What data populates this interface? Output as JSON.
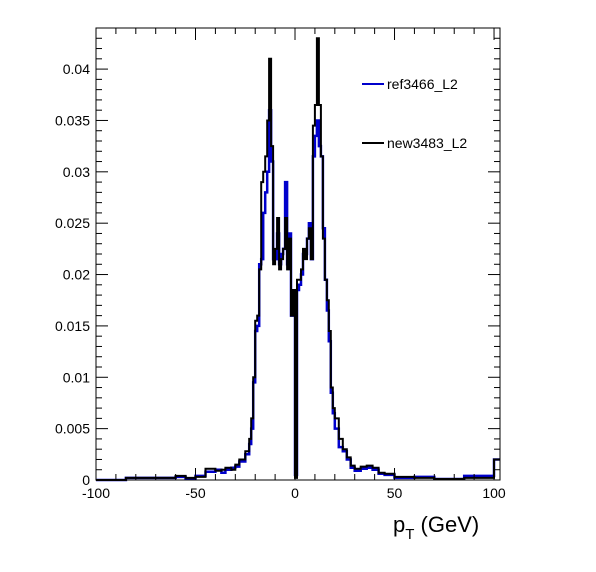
{
  "chart_data": {
    "type": "histogram-step",
    "title": "",
    "xlabel": "p",
    "xlabel_sub": "T",
    "xlabel_unit": " (GeV)",
    "xlim": [
      -100,
      103
    ],
    "ylim": [
      0,
      0.044
    ],
    "x_ticks": [
      -100,
      -50,
      0,
      50,
      100
    ],
    "x_tick_labels": [
      "-100",
      "-50",
      "0",
      "50",
      "100"
    ],
    "y_ticks": [
      0,
      0.005,
      0.01,
      0.015,
      0.02,
      0.025,
      0.03,
      0.035,
      0.04
    ],
    "y_tick_labels": [
      "0",
      "0.005",
      "0.01",
      "0.015",
      "0.02",
      "0.025",
      "0.03",
      "0.035",
      "0.04"
    ],
    "grid": false,
    "legend_position": "top-right",
    "series": [
      {
        "name": "ref3466_L2",
        "color": "#0000cc",
        "points": [
          [
            -100,
            0
          ],
          [
            -85,
            0.0002
          ],
          [
            -60,
            0.0003
          ],
          [
            -55,
            0.0001
          ],
          [
            -50,
            0.0004
          ],
          [
            -45,
            0.0008
          ],
          [
            -40,
            0.001
          ],
          [
            -37,
            0.0007
          ],
          [
            -35,
            0.001
          ],
          [
            -32,
            0.0012
          ],
          [
            -30,
            0.0013
          ],
          [
            -28,
            0.0018
          ],
          [
            -25,
            0.0025
          ],
          [
            -23,
            0.0035
          ],
          [
            -22,
            0.005
          ],
          [
            -21,
            0.0095
          ],
          [
            -20,
            0.0145
          ],
          [
            -19,
            0.015
          ],
          [
            -18,
            0.021
          ],
          [
            -17,
            0.0215
          ],
          [
            -16,
            0.026
          ],
          [
            -15,
            0.028
          ],
          [
            -14,
            0.03
          ],
          [
            -13,
            0.036
          ],
          [
            -12,
            0.031
          ],
          [
            -11,
            0.0215
          ],
          [
            -10,
            0.0215
          ],
          [
            -9,
            0.024
          ],
          [
            -8,
            0.021
          ],
          [
            -7,
            0.022
          ],
          [
            -6,
            0.0225
          ],
          [
            -5,
            0.029
          ],
          [
            -4,
            0.021
          ],
          [
            -3,
            0.024
          ],
          [
            -2,
            0.016
          ],
          [
            -1,
            0.0165
          ],
          [
            0,
            0.0005
          ],
          [
            1,
            0.0185
          ],
          [
            2,
            0.019
          ],
          [
            3,
            0.02
          ],
          [
            4,
            0.022
          ],
          [
            5,
            0.022
          ],
          [
            6,
            0.0235
          ],
          [
            7,
            0.025
          ],
          [
            8,
            0.0215
          ],
          [
            9,
            0.0315
          ],
          [
            10,
            0.0335
          ],
          [
            11,
            0.035
          ],
          [
            12,
            0.0325
          ],
          [
            13,
            0.0315
          ],
          [
            14,
            0.0245
          ],
          [
            15,
            0.0195
          ],
          [
            16,
            0.0165
          ],
          [
            17,
            0.0135
          ],
          [
            18,
            0.0085
          ],
          [
            19,
            0.0065
          ],
          [
            20,
            0.005
          ],
          [
            22,
            0.0032
          ],
          [
            24,
            0.0028
          ],
          [
            26,
            0.002
          ],
          [
            28,
            0.0012
          ],
          [
            30,
            0.0009
          ],
          [
            33,
            0.0011
          ],
          [
            36,
            0.0012
          ],
          [
            39,
            0.001
          ],
          [
            42,
            0.0006
          ],
          [
            45,
            0.0005
          ],
          [
            50,
            0.0002
          ],
          [
            60,
            0.0003
          ],
          [
            70,
            0.0001
          ],
          [
            85,
            0.0004
          ],
          [
            100,
            0.002
          ],
          [
            103,
            0.002
          ]
        ]
      },
      {
        "name": "new3483_L2",
        "color": "#000000",
        "points": [
          [
            -100,
            0
          ],
          [
            -85,
            0.0002
          ],
          [
            -60,
            0.0004
          ],
          [
            -55,
            0.0002
          ],
          [
            -50,
            0.0003
          ],
          [
            -45,
            0.0011
          ],
          [
            -40,
            0.0009
          ],
          [
            -37,
            0.001
          ],
          [
            -35,
            0.0012
          ],
          [
            -32,
            0.001
          ],
          [
            -30,
            0.0015
          ],
          [
            -28,
            0.002
          ],
          [
            -25,
            0.0028
          ],
          [
            -23,
            0.004
          ],
          [
            -22,
            0.006
          ],
          [
            -21,
            0.01
          ],
          [
            -20,
            0.0155
          ],
          [
            -19,
            0.016
          ],
          [
            -18,
            0.0205
          ],
          [
            -17,
            0.029
          ],
          [
            -16,
            0.03
          ],
          [
            -15,
            0.0315
          ],
          [
            -14,
            0.035
          ],
          [
            -13,
            0.041
          ],
          [
            -12,
            0.0325
          ],
          [
            -11,
            0.021
          ],
          [
            -10,
            0.0225
          ],
          [
            -9,
            0.0255
          ],
          [
            -8,
            0.0205
          ],
          [
            -7,
            0.0215
          ],
          [
            -6,
            0.0225
          ],
          [
            -5,
            0.0255
          ],
          [
            -4,
            0.0205
          ],
          [
            -3,
            0.0235
          ],
          [
            -2,
            0.016
          ],
          [
            -1,
            0.0185
          ],
          [
            0,
            0.0002
          ],
          [
            1,
            0.0195
          ],
          [
            2,
            0.0195
          ],
          [
            3,
            0.0205
          ],
          [
            4,
            0.0225
          ],
          [
            5,
            0.0215
          ],
          [
            6,
            0.0235
          ],
          [
            7,
            0.0245
          ],
          [
            8,
            0.0215
          ],
          [
            9,
            0.0345
          ],
          [
            10,
            0.0365
          ],
          [
            11,
            0.043
          ],
          [
            12,
            0.0365
          ],
          [
            13,
            0.0315
          ],
          [
            14,
            0.0235
          ],
          [
            15,
            0.0195
          ],
          [
            16,
            0.0175
          ],
          [
            17,
            0.0145
          ],
          [
            18,
            0.009
          ],
          [
            19,
            0.007
          ],
          [
            20,
            0.006
          ],
          [
            22,
            0.004
          ],
          [
            24,
            0.003
          ],
          [
            26,
            0.0022
          ],
          [
            28,
            0.0014
          ],
          [
            30,
            0.0011
          ],
          [
            33,
            0.0013
          ],
          [
            36,
            0.0014
          ],
          [
            39,
            0.0012
          ],
          [
            42,
            0.0007
          ],
          [
            45,
            0.0006
          ],
          [
            50,
            0.0003
          ],
          [
            60,
            0.0002
          ],
          [
            70,
            0.0001
          ],
          [
            85,
            0.0002
          ],
          [
            100,
            0.002
          ],
          [
            103,
            0.002
          ]
        ]
      }
    ]
  }
}
